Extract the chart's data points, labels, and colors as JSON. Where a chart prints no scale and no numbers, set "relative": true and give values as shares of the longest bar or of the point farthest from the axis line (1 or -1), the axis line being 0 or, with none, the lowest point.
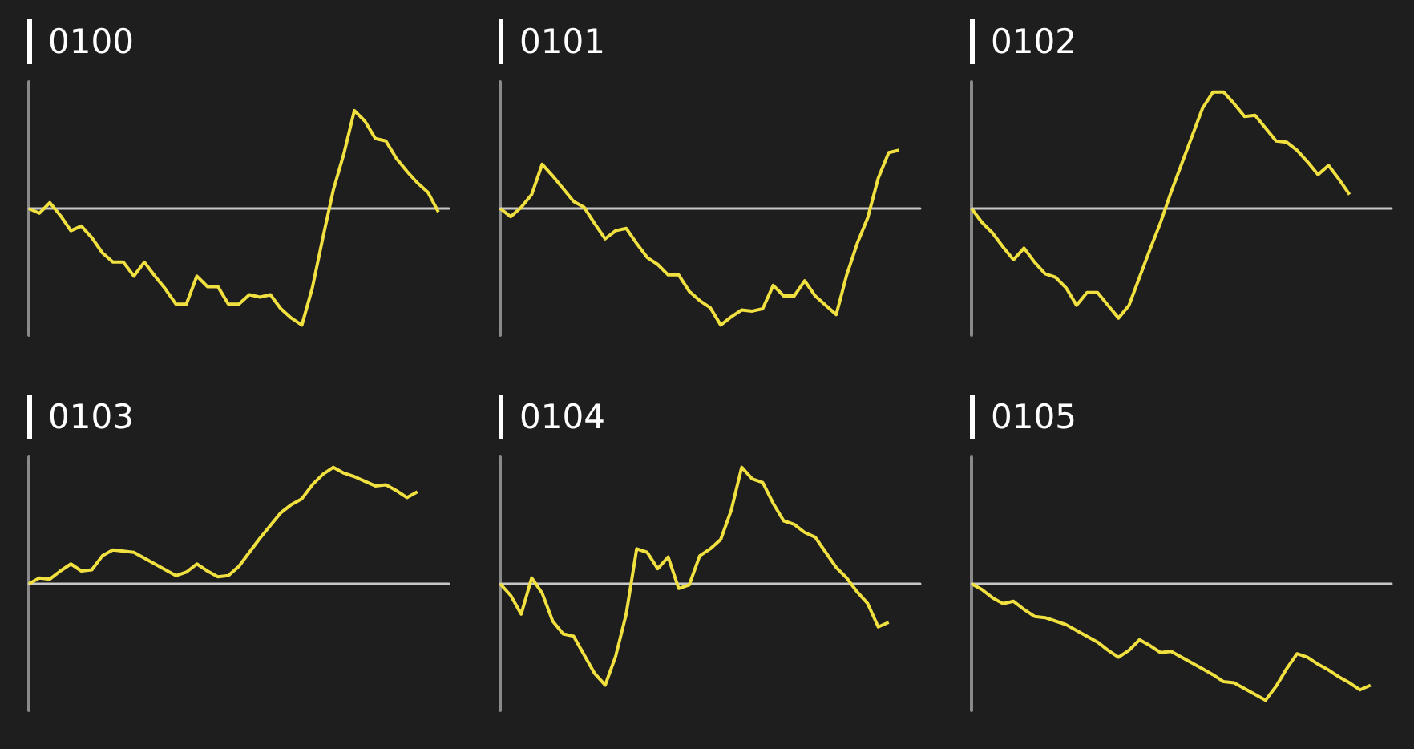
{
  "chart_data": [
    {
      "type": "line",
      "title": "0100",
      "relative": true,
      "grid": false,
      "categories": [
        null,
        null,
        null,
        null,
        null,
        null,
        null,
        null,
        null,
        null,
        null,
        null,
        null,
        null,
        null,
        null,
        null,
        null,
        null,
        null,
        null,
        null,
        null,
        null,
        null,
        null,
        null,
        null,
        null,
        null,
        null,
        null,
        null,
        null,
        null,
        null,
        null,
        null,
        null,
        null,
        null
      ],
      "series": [
        {
          "color": "#f0e040",
          "values": [
            0,
            -0.04,
            0.05,
            -0.06,
            -0.19,
            -0.15,
            -0.25,
            -0.38,
            -0.46,
            -0.46,
            -0.58,
            -0.46,
            -0.58,
            -0.69,
            -0.82,
            -0.82,
            -0.58,
            -0.67,
            -0.67,
            -0.82,
            -0.82,
            -0.74,
            -0.76,
            -0.74,
            -0.86,
            -0.94,
            -1,
            -0.68,
            -0.25,
            0.16,
            0.47,
            0.84,
            0.75,
            0.6,
            0.58,
            0.43,
            0.32,
            0.22,
            0.14,
            -0.03,
            null
          ]
        }
      ]
    },
    {
      "type": "line",
      "title": "0101",
      "relative": true,
      "grid": false,
      "categories": [
        null,
        null,
        null,
        null,
        null,
        null,
        null,
        null,
        null,
        null,
        null,
        null,
        null,
        null,
        null,
        null,
        null,
        null,
        null,
        null,
        null,
        null,
        null,
        null,
        null,
        null,
        null,
        null,
        null,
        null,
        null,
        null,
        null,
        null,
        null,
        null,
        null,
        null,
        null,
        null,
        null
      ],
      "series": [
        {
          "color": "#f0e040",
          "values": [
            0,
            -0.07,
            0.01,
            0.12,
            0.38,
            0.28,
            0.17,
            0.06,
            0.01,
            -0.13,
            -0.26,
            -0.19,
            -0.17,
            -0.3,
            -0.42,
            -0.48,
            -0.57,
            -0.57,
            -0.71,
            -0.79,
            -0.85,
            -1,
            -0.93,
            -0.87,
            -0.88,
            -0.86,
            -0.66,
            -0.75,
            -0.75,
            -0.62,
            -0.75,
            -0.83,
            -0.91,
            -0.57,
            -0.3,
            -0.08,
            0.26,
            0.48,
            0.5,
            null,
            null
          ]
        }
      ]
    },
    {
      "type": "line",
      "title": "0102",
      "relative": true,
      "grid": false,
      "categories": [
        null,
        null,
        null,
        null,
        null,
        null,
        null,
        null,
        null,
        null,
        null,
        null,
        null,
        null,
        null,
        null,
        null,
        null,
        null,
        null,
        null,
        null,
        null,
        null,
        null,
        null,
        null,
        null,
        null,
        null,
        null,
        null,
        null,
        null,
        null,
        null,
        null,
        null,
        null,
        null,
        null
      ],
      "series": [
        {
          "color": "#f0e040",
          "values": [
            0,
            -0.12,
            -0.21,
            -0.33,
            -0.44,
            -0.34,
            -0.46,
            -0.56,
            -0.59,
            -0.68,
            -0.83,
            -0.72,
            -0.72,
            -0.83,
            -0.94,
            -0.83,
            -0.59,
            -0.35,
            -0.12,
            0.14,
            0.38,
            0.62,
            0.86,
            1,
            1,
            0.9,
            0.79,
            0.8,
            0.69,
            0.58,
            0.57,
            0.5,
            0.4,
            0.29,
            0.37,
            0.25,
            0.12,
            null,
            null,
            null,
            null
          ]
        }
      ]
    },
    {
      "type": "line",
      "title": "0103",
      "relative": true,
      "grid": false,
      "categories": [
        null,
        null,
        null,
        null,
        null,
        null,
        null,
        null,
        null,
        null,
        null,
        null,
        null,
        null,
        null,
        null,
        null,
        null,
        null,
        null,
        null,
        null,
        null,
        null,
        null,
        null,
        null,
        null,
        null,
        null,
        null,
        null,
        null,
        null,
        null,
        null,
        null,
        null,
        null,
        null,
        null
      ],
      "series": [
        {
          "color": "#f0e040",
          "values": [
            0,
            0.05,
            0.04,
            0.11,
            0.17,
            0.11,
            0.12,
            0.24,
            0.29,
            0.28,
            0.27,
            0.22,
            0.17,
            0.12,
            0.07,
            0.1,
            0.17,
            0.11,
            0.06,
            0.07,
            0.15,
            0.27,
            0.39,
            0.5,
            0.61,
            0.68,
            0.73,
            0.85,
            0.94,
            1,
            0.95,
            0.92,
            0.88,
            0.84,
            0.85,
            0.8,
            0.74,
            0.79,
            null,
            null,
            null
          ]
        }
      ]
    },
    {
      "type": "line",
      "title": "0104",
      "relative": true,
      "grid": false,
      "categories": [
        null,
        null,
        null,
        null,
        null,
        null,
        null,
        null,
        null,
        null,
        null,
        null,
        null,
        null,
        null,
        null,
        null,
        null,
        null,
        null,
        null,
        null,
        null,
        null,
        null,
        null,
        null,
        null,
        null,
        null,
        null,
        null,
        null,
        null,
        null,
        null,
        null,
        null,
        null,
        null,
        null
      ],
      "series": [
        {
          "color": "#f0e040",
          "values": [
            0,
            -0.1,
            -0.26,
            0.05,
            -0.08,
            -0.32,
            -0.43,
            -0.45,
            -0.61,
            -0.77,
            -0.87,
            -0.62,
            -0.26,
            0.3,
            0.27,
            0.13,
            0.23,
            -0.04,
            -0.01,
            0.24,
            0.3,
            0.38,
            0.63,
            1,
            0.9,
            0.87,
            0.69,
            0.54,
            0.51,
            0.44,
            0.4,
            0.27,
            0.14,
            0.05,
            -0.07,
            -0.17,
            -0.37,
            -0.33,
            null,
            null,
            null
          ]
        }
      ]
    },
    {
      "type": "line",
      "title": "0105",
      "relative": true,
      "grid": false,
      "categories": [
        null,
        null,
        null,
        null,
        null,
        null,
        null,
        null,
        null,
        null,
        null,
        null,
        null,
        null,
        null,
        null,
        null,
        null,
        null,
        null,
        null,
        null,
        null,
        null,
        null,
        null,
        null,
        null,
        null,
        null,
        null,
        null,
        null,
        null,
        null,
        null,
        null,
        null,
        null,
        null,
        null
      ],
      "series": [
        {
          "color": "#f0e040",
          "values": [
            0,
            -0.05,
            -0.12,
            -0.17,
            -0.15,
            -0.22,
            -0.28,
            -0.29,
            -0.32,
            -0.35,
            -0.4,
            -0.45,
            -0.5,
            -0.57,
            -0.63,
            -0.57,
            -0.48,
            -0.53,
            -0.59,
            -0.58,
            -0.63,
            -0.68,
            -0.73,
            -0.78,
            -0.84,
            -0.85,
            -0.9,
            -0.95,
            -1,
            -0.88,
            -0.73,
            -0.6,
            -0.63,
            -0.69,
            -0.74,
            -0.8,
            -0.85,
            -0.91,
            -0.87,
            null,
            null
          ]
        }
      ]
    }
  ]
}
